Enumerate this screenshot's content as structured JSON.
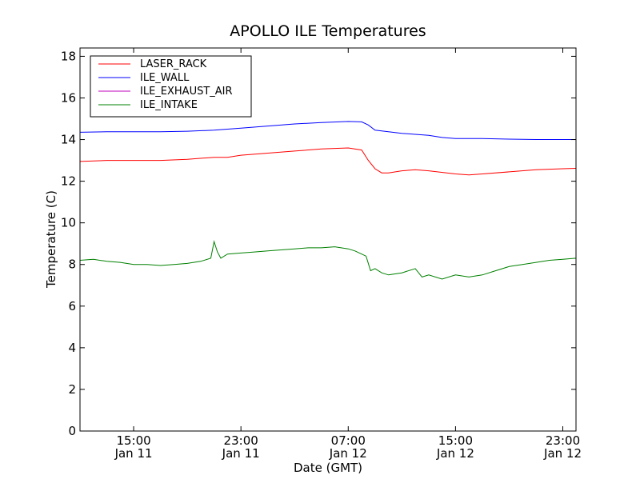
{
  "chart_data": {
    "type": "line",
    "title": "APOLLO ILE Temperatures",
    "xlabel": "Date (GMT)",
    "ylabel": "Temperature (C)",
    "x_unit": "datetime (GMT)",
    "xlim": [
      "2011-01-11 11:00",
      "2011-01-12 23:59"
    ],
    "ylim": [
      0,
      18.4
    ],
    "grid": false,
    "legend_position": "top-left",
    "x_ticks": [
      {
        "x": "2011-01-11 15:00",
        "time": "15:00",
        "date": "Jan 11"
      },
      {
        "x": "2011-01-11 23:00",
        "time": "23:00",
        "date": "Jan 11"
      },
      {
        "x": "2011-01-12 07:00",
        "time": "07:00",
        "date": "Jan 12"
      },
      {
        "x": "2011-01-12 15:00",
        "time": "15:00",
        "date": "Jan 12"
      },
      {
        "x": "2011-01-12 23:00",
        "time": "23:00",
        "date": "Jan 12"
      }
    ],
    "y_ticks": [
      0,
      2,
      4,
      6,
      8,
      10,
      12,
      14,
      16,
      18
    ],
    "series": [
      {
        "name": "LASER_RACK",
        "color": "#ff0000",
        "x": [
          "2011-01-11 11:00",
          "2011-01-11 13:00",
          "2011-01-11 15:00",
          "2011-01-11 17:00",
          "2011-01-11 19:00",
          "2011-01-11 21:00",
          "2011-01-11 22:00",
          "2011-01-11 23:00",
          "2011-01-12 01:00",
          "2011-01-12 03:00",
          "2011-01-12 05:00",
          "2011-01-12 07:00",
          "2011-01-12 08:00",
          "2011-01-12 08:30",
          "2011-01-12 09:00",
          "2011-01-12 09:30",
          "2011-01-12 10:00",
          "2011-01-12 11:00",
          "2011-01-12 12:00",
          "2011-01-12 13:00",
          "2011-01-12 15:00",
          "2011-01-12 16:00",
          "2011-01-12 17:00",
          "2011-01-12 19:00",
          "2011-01-12 21:00",
          "2011-01-12 23:00",
          "2011-01-12 23:59"
        ],
        "y": [
          12.95,
          13.0,
          13.0,
          13.0,
          13.05,
          13.15,
          13.15,
          13.25,
          13.35,
          13.45,
          13.55,
          13.6,
          13.5,
          13.0,
          12.6,
          12.4,
          12.4,
          12.5,
          12.55,
          12.5,
          12.35,
          12.3,
          12.35,
          12.45,
          12.55,
          12.6,
          12.62
        ]
      },
      {
        "name": "ILE_WALL",
        "color": "#0000ff",
        "x": [
          "2011-01-11 11:00",
          "2011-01-11 13:00",
          "2011-01-11 15:00",
          "2011-01-11 17:00",
          "2011-01-11 19:00",
          "2011-01-11 21:00",
          "2011-01-11 23:00",
          "2011-01-12 01:00",
          "2011-01-12 03:00",
          "2011-01-12 05:00",
          "2011-01-12 07:00",
          "2011-01-12 08:00",
          "2011-01-12 08:30",
          "2011-01-12 09:00",
          "2011-01-12 10:00",
          "2011-01-12 11:00",
          "2011-01-12 12:00",
          "2011-01-12 13:00",
          "2011-01-12 14:00",
          "2011-01-12 15:00",
          "2011-01-12 17:00",
          "2011-01-12 19:00",
          "2011-01-12 21:00",
          "2011-01-12 23:00",
          "2011-01-12 23:59"
        ],
        "y": [
          14.35,
          14.38,
          14.38,
          14.38,
          14.4,
          14.45,
          14.55,
          14.65,
          14.75,
          14.82,
          14.87,
          14.85,
          14.7,
          14.45,
          14.38,
          14.3,
          14.25,
          14.2,
          14.1,
          14.05,
          14.05,
          14.02,
          14.0,
          14.0,
          14.0
        ]
      },
      {
        "name": "ILE_EXHAUST_AIR",
        "color": "#bf00bf",
        "x": [],
        "y": []
      },
      {
        "name": "ILE_INTAKE",
        "color": "#008000",
        "x": [
          "2011-01-11 11:00",
          "2011-01-11 12:00",
          "2011-01-11 13:00",
          "2011-01-11 14:00",
          "2011-01-11 15:00",
          "2011-01-11 16:00",
          "2011-01-11 17:00",
          "2011-01-11 18:00",
          "2011-01-11 19:00",
          "2011-01-11 20:00",
          "2011-01-11 20:45",
          "2011-01-11 21:00",
          "2011-01-11 21:15",
          "2011-01-11 21:30",
          "2011-01-11 22:00",
          "2011-01-11 23:00",
          "2011-01-12 00:00",
          "2011-01-12 01:00",
          "2011-01-12 02:00",
          "2011-01-12 03:00",
          "2011-01-12 04:00",
          "2011-01-12 05:00",
          "2011-01-12 06:00",
          "2011-01-12 07:00",
          "2011-01-12 07:30",
          "2011-01-12 08:00",
          "2011-01-12 08:20",
          "2011-01-12 08:40",
          "2011-01-12 09:00",
          "2011-01-12 09:30",
          "2011-01-12 10:00",
          "2011-01-12 11:00",
          "2011-01-12 12:00",
          "2011-01-12 12:30",
          "2011-01-12 13:00",
          "2011-01-12 14:00",
          "2011-01-12 15:00",
          "2011-01-12 16:00",
          "2011-01-12 17:00",
          "2011-01-12 18:00",
          "2011-01-12 19:00",
          "2011-01-12 20:00",
          "2011-01-12 21:00",
          "2011-01-12 22:00",
          "2011-01-12 23:00",
          "2011-01-12 23:59"
        ],
        "y": [
          8.2,
          8.25,
          8.15,
          8.1,
          8.0,
          8.0,
          7.95,
          8.0,
          8.05,
          8.15,
          8.3,
          9.1,
          8.6,
          8.3,
          8.5,
          8.55,
          8.6,
          8.65,
          8.7,
          8.75,
          8.8,
          8.8,
          8.85,
          8.75,
          8.65,
          8.5,
          8.4,
          7.7,
          7.8,
          7.6,
          7.5,
          7.6,
          7.8,
          7.4,
          7.5,
          7.3,
          7.5,
          7.4,
          7.5,
          7.7,
          7.9,
          8.0,
          8.1,
          8.2,
          8.25,
          8.3
        ]
      }
    ]
  }
}
